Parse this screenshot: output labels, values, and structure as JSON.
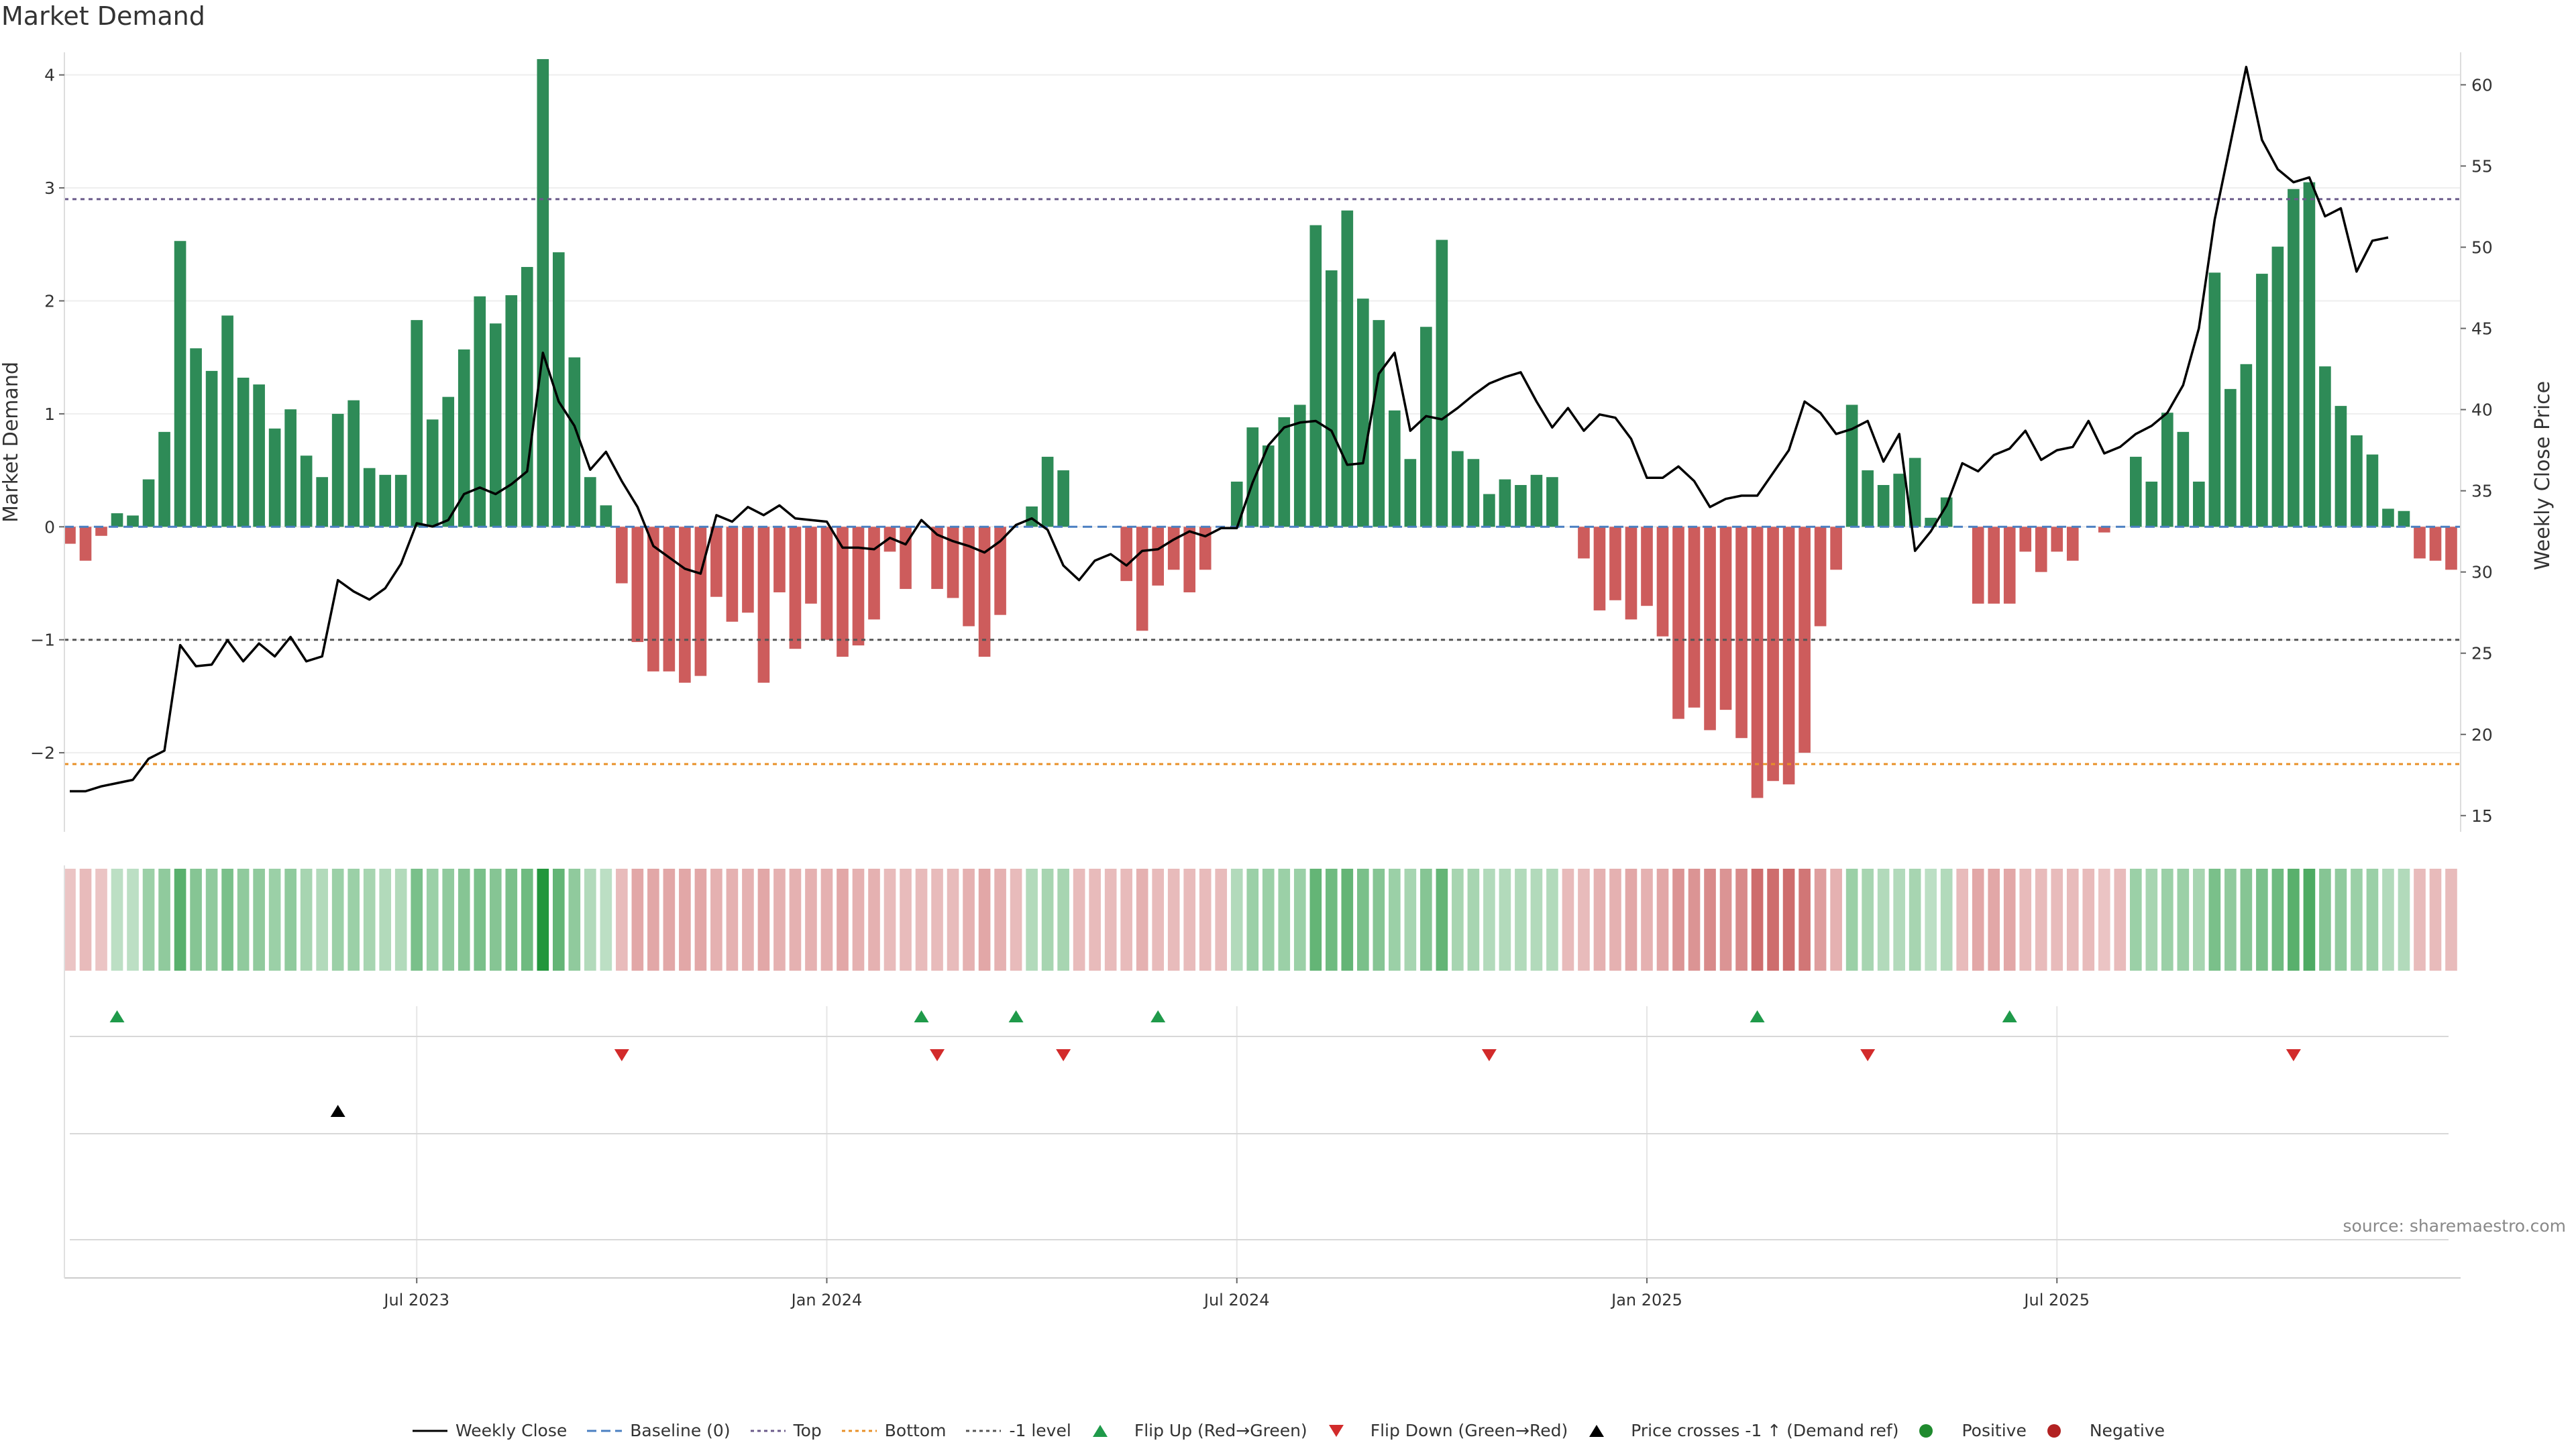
{
  "title": "Market Demand",
  "source": "source: sharemaestro.com",
  "colors": {
    "positive": "#2e8b57",
    "negative": "#cd5c5c",
    "line": "#000000",
    "top": "#6a5a8a",
    "bottom": "#e89028",
    "level": "#555555",
    "flip_up": "#1f9a4a",
    "flip_down": "#d22b2b"
  },
  "legend": [
    {
      "key": "line",
      "label": "Weekly Close"
    },
    {
      "key": "baseline",
      "label": "Baseline (0)"
    },
    {
      "key": "top",
      "label": "Top"
    },
    {
      "key": "bottom",
      "label": "Bottom"
    },
    {
      "key": "level",
      "label": "-1 level"
    },
    {
      "key": "flip_up",
      "label": "Flip Up (Red→Green)"
    },
    {
      "key": "flip_down",
      "label": "Flip Down (Green→Red)"
    },
    {
      "key": "cross",
      "label": "Price crosses -1 ↑ (Demand ref)"
    },
    {
      "key": "positive",
      "label": "Positive"
    },
    {
      "key": "negative",
      "label": "Negative"
    }
  ],
  "chart_data": {
    "type": "bar",
    "title": "Market Demand",
    "ylabel": "Market Demand",
    "y2label": "Weekly Close Price",
    "ylim": [
      -2.7,
      4.2
    ],
    "y2lim": [
      14,
      62
    ],
    "yticks": [
      4,
      3,
      2,
      1,
      0,
      -1,
      -2
    ],
    "ytick_labels": [
      "4",
      "3",
      "2",
      "1",
      "0",
      "−1",
      "−2"
    ],
    "y2ticks": [
      60,
      55,
      50,
      45,
      40,
      35,
      30,
      25,
      20,
      15
    ],
    "x_start_week": 0,
    "x_tick_weeks": [
      22,
      48,
      74,
      100,
      126
    ],
    "x_tick_labels": [
      "Jul 2023",
      "Jan 2024",
      "Jul 2024",
      "Jan 2025",
      "Jul 2025"
    ],
    "thresholds": {
      "top": 2.9,
      "bottom": -2.1,
      "level": -1.0,
      "baseline": 0
    },
    "series": [
      {
        "name": "Market Demand",
        "type": "bar",
        "values": [
          -0.15,
          -0.3,
          -0.08,
          0.12,
          0.1,
          0.42,
          0.84,
          2.53,
          1.58,
          1.38,
          1.87,
          1.32,
          1.26,
          0.87,
          1.04,
          0.63,
          0.44,
          1.0,
          1.12,
          0.52,
          0.46,
          0.46,
          1.83,
          0.95,
          1.15,
          1.57,
          2.04,
          1.8,
          2.05,
          2.3,
          4.14,
          2.43,
          1.5,
          0.44,
          0.19,
          -0.5,
          -1.02,
          -1.28,
          -1.28,
          -1.38,
          -1.32,
          -0.62,
          -0.84,
          -0.76,
          -1.38,
          -0.58,
          -1.08,
          -0.68,
          -1.0,
          -1.15,
          -1.05,
          -0.82,
          -0.22,
          -0.55,
          0,
          -0.55,
          -0.63,
          -0.88,
          -1.15,
          -0.78,
          0,
          0.18,
          0.62,
          0.5,
          0,
          0,
          0,
          -0.48,
          -0.92,
          -0.52,
          -0.38,
          -0.58,
          -0.38,
          0,
          0.4,
          0.88,
          0.72,
          0.97,
          1.08,
          2.67,
          2.27,
          2.8,
          2.02,
          1.83,
          1.03,
          0.6,
          1.77,
          2.54,
          0.67,
          0.6,
          0.29,
          0.42,
          0.37,
          0.46,
          0.44,
          0,
          -0.28,
          -0.74,
          -0.65,
          -0.82,
          -0.7,
          -0.97,
          -1.7,
          -1.6,
          -1.8,
          -1.62,
          -1.87,
          -2.4,
          -2.25,
          -2.28,
          -2.0,
          -0.88,
          -0.38,
          1.08,
          0.5,
          0.37,
          0.47,
          0.61,
          0.08,
          0.26,
          0,
          -0.68,
          -0.68,
          -0.68,
          -0.22,
          -0.4,
          -0.22,
          -0.3,
          0,
          -0.05,
          0,
          0.62,
          0.4,
          1.01,
          0.84,
          0.4,
          2.25,
          1.22,
          1.44,
          2.24,
          2.48,
          2.99,
          3.05,
          1.42,
          1.07,
          0.81,
          0.64,
          0.16,
          0.14,
          -0.28,
          -0.3,
          -0.38
        ]
      },
      {
        "name": "Weekly Close",
        "type": "line",
        "axis": "right",
        "values": [
          16.5,
          16.5,
          16.8,
          17.0,
          17.2,
          18.5,
          19.0,
          25.5,
          24.2,
          24.3,
          25.8,
          24.5,
          25.6,
          24.8,
          26.0,
          24.5,
          24.8,
          29.5,
          28.8,
          28.3,
          29.0,
          30.5,
          33.0,
          32.8,
          33.2,
          34.8,
          35.2,
          34.8,
          35.4,
          36.2,
          43.5,
          40.5,
          39.0,
          36.3,
          37.4,
          35.6,
          34.0,
          31.6,
          30.9,
          30.2,
          29.9,
          33.5,
          33.1,
          34.0,
          33.5,
          34.1,
          33.3,
          33.2,
          33.1,
          31.5,
          31.5,
          31.4,
          32.1,
          31.7,
          33.2,
          32.3,
          31.9,
          31.6,
          31.2,
          31.9,
          32.9,
          33.3,
          32.6,
          30.4,
          29.5,
          30.7,
          31.1,
          30.4,
          31.3,
          31.4,
          32.0,
          32.5,
          32.2,
          32.7,
          32.7,
          35.5,
          37.8,
          38.9,
          39.2,
          39.3,
          38.7,
          36.6,
          36.7,
          42.2,
          43.5,
          38.7,
          39.6,
          39.4,
          40.1,
          40.9,
          41.6,
          42.0,
          42.3,
          40.5,
          38.9,
          40.1,
          38.7,
          39.7,
          39.5,
          38.2,
          35.8,
          35.8,
          36.5,
          35.6,
          34.0,
          34.5,
          34.7,
          34.7,
          36.1,
          37.5,
          40.5,
          39.8,
          38.5,
          38.8,
          39.3,
          36.8,
          38.5,
          31.3,
          32.5,
          34.1,
          36.7,
          36.2,
          37.2,
          37.6,
          38.7,
          36.9,
          37.5,
          37.7,
          39.3,
          37.3,
          37.7,
          38.5,
          39.0,
          39.8,
          41.5,
          45.0,
          51.7,
          56.4,
          61.1,
          56.6,
          54.8,
          54.0,
          54.3,
          51.9,
          52.4,
          48.5,
          50.4,
          50.6
        ]
      }
    ],
    "heat_intensity": [
      0.3,
      0.35,
      0.3,
      0.3,
      0.3,
      0.45,
      0.5,
      0.75,
      0.55,
      0.5,
      0.6,
      0.5,
      0.5,
      0.45,
      0.5,
      0.4,
      0.35,
      0.45,
      0.45,
      0.4,
      0.35,
      0.35,
      0.6,
      0.45,
      0.5,
      0.55,
      0.6,
      0.55,
      0.6,
      0.65,
      1.0,
      0.7,
      0.5,
      0.35,
      0.3,
      0.35,
      0.45,
      0.45,
      0.45,
      0.45,
      0.45,
      0.4,
      0.4,
      0.4,
      0.45,
      0.4,
      0.4,
      0.4,
      0.4,
      0.45,
      0.4,
      0.4,
      0.35,
      0.35,
      0.35,
      0.35,
      0.35,
      0.4,
      0.45,
      0.4,
      0.35,
      0.35,
      0.4,
      0.4,
      0.35,
      0.35,
      0.35,
      0.35,
      0.4,
      0.35,
      0.35,
      0.35,
      0.35,
      0.35,
      0.35,
      0.45,
      0.45,
      0.45,
      0.45,
      0.7,
      0.65,
      0.7,
      0.6,
      0.55,
      0.45,
      0.4,
      0.55,
      0.7,
      0.4,
      0.4,
      0.35,
      0.35,
      0.35,
      0.35,
      0.35,
      0.35,
      0.35,
      0.4,
      0.4,
      0.45,
      0.4,
      0.45,
      0.55,
      0.55,
      0.6,
      0.55,
      0.6,
      0.75,
      0.75,
      0.75,
      0.7,
      0.5,
      0.4,
      0.45,
      0.4,
      0.35,
      0.35,
      0.4,
      0.3,
      0.35,
      0.35,
      0.45,
      0.45,
      0.45,
      0.35,
      0.35,
      0.35,
      0.35,
      0.3,
      0.3,
      0.3,
      0.45,
      0.4,
      0.45,
      0.45,
      0.4,
      0.6,
      0.5,
      0.55,
      0.6,
      0.65,
      0.75,
      0.8,
      0.55,
      0.5,
      0.45,
      0.45,
      0.35,
      0.35,
      0.35,
      0.35,
      0.35
    ],
    "flip_up_weeks": [
      3,
      54,
      60,
      69,
      107,
      123
    ],
    "flip_down_weeks": [
      35,
      55,
      63,
      90,
      114,
      141
    ],
    "cross_up_weeks": [
      17
    ]
  }
}
